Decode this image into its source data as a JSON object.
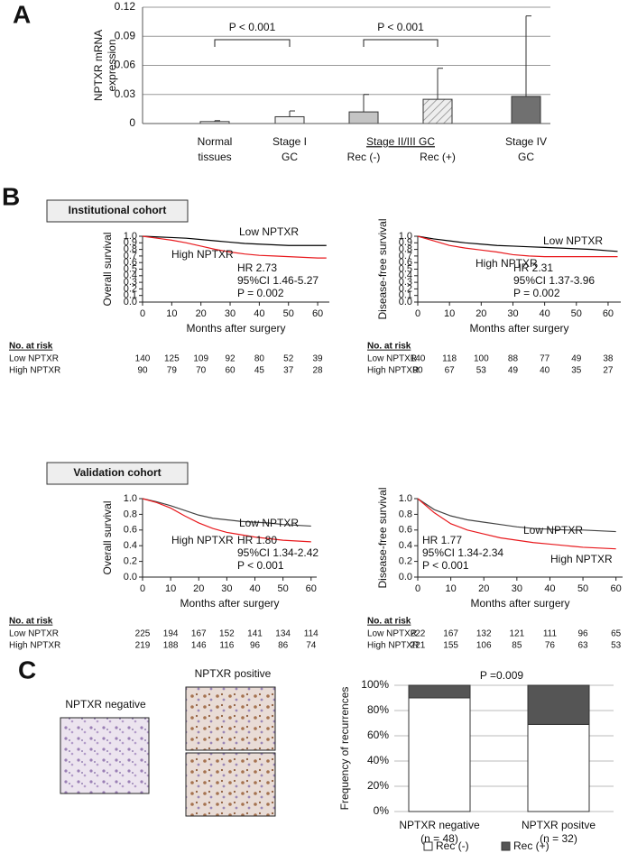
{
  "panel_labels": [
    "A",
    "B",
    "C"
  ],
  "cohort_labels": [
    "Institutional cohort",
    "Validation cohort"
  ],
  "image_labels": [
    "NPTXR negative",
    "NPTXR positive"
  ],
  "chart_data": [
    {
      "type": "bar",
      "ylabel": [
        "NPTXR mRNA",
        "expression"
      ],
      "categories": [
        [
          "Normal",
          "tissues"
        ],
        [
          "Stage I",
          "GC"
        ],
        [
          "Rec (-)"
        ],
        [
          "Rec (+)"
        ],
        [
          "Stage IV",
          "GC"
        ]
      ],
      "group_label": "Stage II/III GC",
      "values": [
        0.002,
        0.007,
        0.012,
        0.025,
        0.028
      ],
      "errors": [
        0.001,
        0.006,
        0.018,
        0.032,
        0.083
      ],
      "colors": [
        "#ffffff",
        "#f2f2f2",
        "#c4c4c4",
        "#e8e8e8",
        "#707070"
      ],
      "hatch": [
        false,
        false,
        false,
        true,
        false
      ],
      "ylim": [
        0,
        0.12
      ],
      "yticks": [
        0,
        0.03,
        0.06,
        0.09,
        0.12
      ],
      "grid": true,
      "annotations": [
        "P < 0.001",
        "P < 0.001"
      ]
    },
    {
      "type": "line",
      "ylabel": "Overall survival",
      "xlabel": "Months after surgery",
      "x": [
        0,
        5,
        10,
        15,
        20,
        25,
        30,
        35,
        40,
        45,
        50,
        55,
        60,
        63
      ],
      "series": [
        {
          "name": "Low NPTXR",
          "color": "#000000",
          "values": [
            1,
            0.99,
            0.98,
            0.97,
            0.95,
            0.93,
            0.91,
            0.89,
            0.88,
            0.87,
            0.86,
            0.86,
            0.86,
            0.86
          ],
          "at_risk": [
            140,
            125,
            109,
            92,
            80,
            52,
            39
          ]
        },
        {
          "name": "High NPTXR",
          "color": "#e8191d",
          "values": [
            1,
            0.97,
            0.94,
            0.9,
            0.85,
            0.8,
            0.76,
            0.73,
            0.71,
            0.7,
            0.69,
            0.68,
            0.67,
            0.67
          ],
          "at_risk": [
            90,
            79,
            70,
            60,
            45,
            37,
            28
          ]
        }
      ],
      "risk_title": "No. at risk",
      "xlim": [
        0,
        64
      ],
      "xticks": [
        0,
        10,
        20,
        30,
        40,
        50,
        60
      ],
      "ylim": [
        0,
        1
      ],
      "yticks": [
        {
          "value": 0,
          "label": "0.0"
        },
        0.1,
        0.2,
        0.3,
        0.4,
        0.5,
        0.6,
        0.7,
        0.8,
        0.9,
        {
          "value": 1,
          "label": "1.0"
        }
      ],
      "annotations": [
        "HR 2.73",
        "95%CI 1.46-5.27",
        "P = 0.002"
      ]
    },
    {
      "type": "line",
      "ylabel": "Disease-free survival",
      "xlabel": "Months after surgery",
      "x": [
        0,
        5,
        10,
        15,
        20,
        25,
        30,
        35,
        40,
        45,
        50,
        55,
        60,
        63
      ],
      "series": [
        {
          "name": "Low NPTXR",
          "color": "#000000",
          "values": [
            1,
            0.96,
            0.93,
            0.9,
            0.88,
            0.86,
            0.85,
            0.84,
            0.83,
            0.82,
            0.81,
            0.8,
            0.78,
            0.77
          ],
          "at_risk": [
            140,
            118,
            100,
            88,
            77,
            49,
            38
          ]
        },
        {
          "name": "High NPTXR",
          "color": "#e8191d",
          "values": [
            1,
            0.93,
            0.86,
            0.82,
            0.79,
            0.76,
            0.72,
            0.7,
            0.69,
            0.69,
            0.69,
            0.69,
            0.69,
            0.69
          ],
          "at_risk": [
            90,
            67,
            53,
            49,
            40,
            35,
            27
          ]
        }
      ],
      "risk_title": "No. at risk",
      "xlim": [
        0,
        64
      ],
      "xticks": [
        0,
        10,
        20,
        30,
        40,
        50,
        60
      ],
      "ylim": [
        0,
        1
      ],
      "yticks": [
        {
          "value": 0,
          "label": "0.0"
        },
        0.1,
        0.2,
        0.3,
        0.4,
        0.5,
        0.6,
        0.7,
        0.8,
        0.9,
        {
          "value": 1,
          "label": "1.0"
        }
      ],
      "annotations": [
        "HR 2.31",
        "95%CI 1.37-3.96",
        "P = 0.002"
      ]
    },
    {
      "type": "line",
      "ylabel": "Overall survival",
      "xlabel": "Months after surgery",
      "x": [
        0,
        5,
        10,
        15,
        20,
        25,
        30,
        35,
        40,
        45,
        50,
        55,
        60
      ],
      "series": [
        {
          "name": "Low NPTXR",
          "color": "#444444",
          "values": [
            1,
            0.96,
            0.91,
            0.85,
            0.79,
            0.75,
            0.73,
            0.71,
            0.7,
            0.69,
            0.67,
            0.66,
            0.65
          ],
          "at_risk": [
            225,
            194,
            167,
            152,
            141,
            134,
            114
          ]
        },
        {
          "name": "High NPTXR",
          "color": "#e8191d",
          "values": [
            1,
            0.95,
            0.88,
            0.78,
            0.69,
            0.62,
            0.57,
            0.54,
            0.51,
            0.49,
            0.47,
            0.46,
            0.45
          ],
          "at_risk": [
            219,
            188,
            146,
            116,
            96,
            86,
            74
          ]
        }
      ],
      "risk_title": "No. at risk",
      "xlim": [
        0,
        62
      ],
      "xticks": [
        0,
        10,
        20,
        30,
        40,
        50,
        60
      ],
      "ylim": [
        0,
        1
      ],
      "yticks": [
        {
          "value": 0,
          "label": "0.0"
        },
        0.2,
        0.4,
        0.6,
        0.8,
        {
          "value": 1,
          "label": "1.0"
        }
      ],
      "annotations": [
        "HR 1.80",
        "95%CI 1.34-2.42",
        "P < 0.001"
      ]
    },
    {
      "type": "line",
      "ylabel": "Disease-free survival",
      "xlabel": "Months after surgery",
      "x": [
        0,
        5,
        10,
        15,
        20,
        25,
        30,
        35,
        40,
        45,
        50,
        55,
        60
      ],
      "series": [
        {
          "name": "Low NPTXR",
          "color": "#444444",
          "values": [
            1,
            0.86,
            0.78,
            0.73,
            0.7,
            0.67,
            0.64,
            0.62,
            0.61,
            0.6,
            0.6,
            0.59,
            0.58
          ],
          "at_risk": [
            222,
            167,
            132,
            121,
            111,
            96,
            65
          ]
        },
        {
          "name": "High NPTXR",
          "color": "#e8191d",
          "values": [
            1,
            0.82,
            0.68,
            0.6,
            0.55,
            0.5,
            0.47,
            0.44,
            0.42,
            0.4,
            0.38,
            0.37,
            0.36
          ],
          "at_risk": [
            221,
            155,
            106,
            85,
            76,
            63,
            53
          ]
        }
      ],
      "risk_title": "No. at risk",
      "xlim": [
        0,
        62
      ],
      "xticks": [
        0,
        10,
        20,
        30,
        40,
        50,
        60
      ],
      "ylim": [
        0,
        1
      ],
      "yticks": [
        {
          "value": 0,
          "label": "0.0"
        },
        0.2,
        0.4,
        0.6,
        0.8,
        {
          "value": 1,
          "label": "1.0"
        }
      ],
      "annotations": [
        "HR 1.77",
        "95%CI 1.34-2.34",
        "P < 0.001"
      ]
    },
    {
      "type": "stacked_bar",
      "ylabel": "Frequency of recurrences",
      "categories": [
        "NPTXR negative",
        "NPTXR positve"
      ],
      "category_notes": [
        "(n = 48)",
        "(n = 32)"
      ],
      "series": [
        {
          "name": "Rec (-)",
          "color": "#ffffff",
          "values": [
            90,
            69
          ]
        },
        {
          "name": "Rec (+)",
          "color": "#555555",
          "values": [
            10,
            31
          ]
        }
      ],
      "ylim": [
        0,
        100
      ],
      "yticks": [
        {
          "value": 0,
          "label": "0%"
        },
        {
          "value": 20,
          "label": "20%"
        },
        {
          "value": 40,
          "label": "40%"
        },
        {
          "value": 60,
          "label": "60%"
        },
        {
          "value": 80,
          "label": "80%"
        },
        {
          "value": 100,
          "label": "100%"
        }
      ],
      "annotations": [
        "P =0.009"
      ]
    }
  ]
}
